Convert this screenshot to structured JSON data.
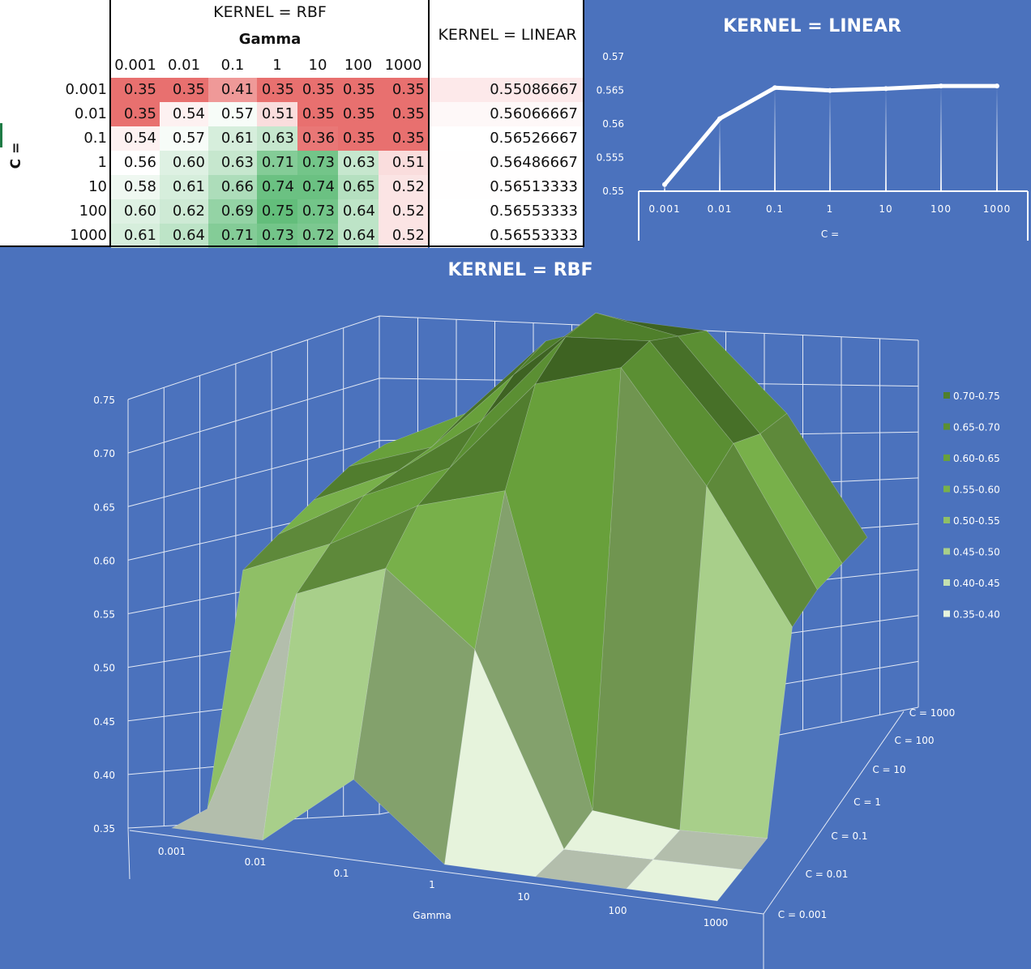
{
  "table": {
    "rbf_header": "KERNEL = RBF",
    "gamma_header": "Gamma",
    "linear_header": "KERNEL = LINEAR",
    "c_label": "C =",
    "gamma_values": [
      "0.001",
      "0.01",
      "0.1",
      "1",
      "10",
      "100",
      "1000"
    ],
    "c_values": [
      "0.001",
      "0.01",
      "0.1",
      "1",
      "10",
      "100",
      "1000"
    ],
    "rbf_scores": [
      [
        "0.35",
        "0.35",
        "0.41",
        "0.35",
        "0.35",
        "0.35",
        "0.35"
      ],
      [
        "0.35",
        "0.54",
        "0.57",
        "0.51",
        "0.35",
        "0.35",
        "0.35"
      ],
      [
        "0.54",
        "0.57",
        "0.61",
        "0.63",
        "0.36",
        "0.35",
        "0.35"
      ],
      [
        "0.56",
        "0.60",
        "0.63",
        "0.71",
        "0.73",
        "0.63",
        "0.51"
      ],
      [
        "0.58",
        "0.61",
        "0.66",
        "0.74",
        "0.74",
        "0.65",
        "0.52"
      ],
      [
        "0.60",
        "0.62",
        "0.69",
        "0.75",
        "0.73",
        "0.64",
        "0.52"
      ],
      [
        "0.61",
        "0.64",
        "0.71",
        "0.73",
        "0.72",
        "0.64",
        "0.52"
      ]
    ],
    "linear_scores": [
      "0.55086667",
      "0.56066667",
      "0.56526667",
      "0.56486667",
      "0.56513333",
      "0.56553333",
      "0.56553333"
    ],
    "colors": {
      "low": "#e8706f",
      "mid": "#ffffff",
      "high": "#63be7b",
      "linear_low": "#fde9ea"
    }
  },
  "chart_data": [
    {
      "type": "line",
      "title": "KERNEL = LINEAR",
      "xlabel": "C =",
      "ylabel": "",
      "categories": [
        "0.001",
        "0.01",
        "0.1",
        "1",
        "10",
        "100",
        "1000"
      ],
      "values": [
        0.55086667,
        0.56066667,
        0.56526667,
        0.56486667,
        0.56513333,
        0.56553333,
        0.56553333
      ],
      "ylim": [
        0.55,
        0.57
      ],
      "yticks": [
        "0.55",
        "0.555",
        "0.56",
        "0.565",
        "0.57"
      ],
      "line_color": "#ffffff",
      "grid": "vertical drop lines",
      "legend": "none"
    },
    {
      "type": "surface",
      "title": "KERNEL = RBF",
      "xlabel": "Gamma",
      "x": [
        "0.001",
        "0.01",
        "0.1",
        "1",
        "10",
        "100",
        "1000"
      ],
      "y": [
        "C = 0.001",
        "C = 0.01",
        "C = 0.1",
        "C = 1",
        "C = 10",
        "C = 100",
        "C = 1000"
      ],
      "z": [
        [
          0.35,
          0.35,
          0.41,
          0.35,
          0.35,
          0.35,
          0.35
        ],
        [
          0.35,
          0.54,
          0.57,
          0.51,
          0.35,
          0.35,
          0.35
        ],
        [
          0.54,
          0.57,
          0.61,
          0.63,
          0.36,
          0.35,
          0.35
        ],
        [
          0.56,
          0.6,
          0.63,
          0.71,
          0.73,
          0.63,
          0.51
        ],
        [
          0.58,
          0.61,
          0.66,
          0.74,
          0.74,
          0.65,
          0.52
        ],
        [
          0.6,
          0.62,
          0.69,
          0.75,
          0.73,
          0.64,
          0.52
        ],
        [
          0.61,
          0.64,
          0.71,
          0.73,
          0.72,
          0.64,
          0.52
        ]
      ],
      "zlim": [
        0.35,
        0.75
      ],
      "zticks": [
        "0.35",
        "0.40",
        "0.45",
        "0.50",
        "0.55",
        "0.60",
        "0.65",
        "0.70",
        "0.75"
      ],
      "legend_position": "right",
      "legend": [
        {
          "label": "0.70-0.75",
          "color": "#4f7f2b"
        },
        {
          "label": "0.65-0.70",
          "color": "#5b8f33"
        },
        {
          "label": "0.60-0.65",
          "color": "#68a03b"
        },
        {
          "label": "0.55-0.60",
          "color": "#78b04a"
        },
        {
          "label": "0.50-0.55",
          "color": "#8fbf66"
        },
        {
          "label": "0.45-0.50",
          "color": "#a8cf8a"
        },
        {
          "label": "0.40-0.45",
          "color": "#c4e0b0"
        },
        {
          "label": "0.35-0.40",
          "color": "#e6f3dc"
        }
      ]
    }
  ]
}
